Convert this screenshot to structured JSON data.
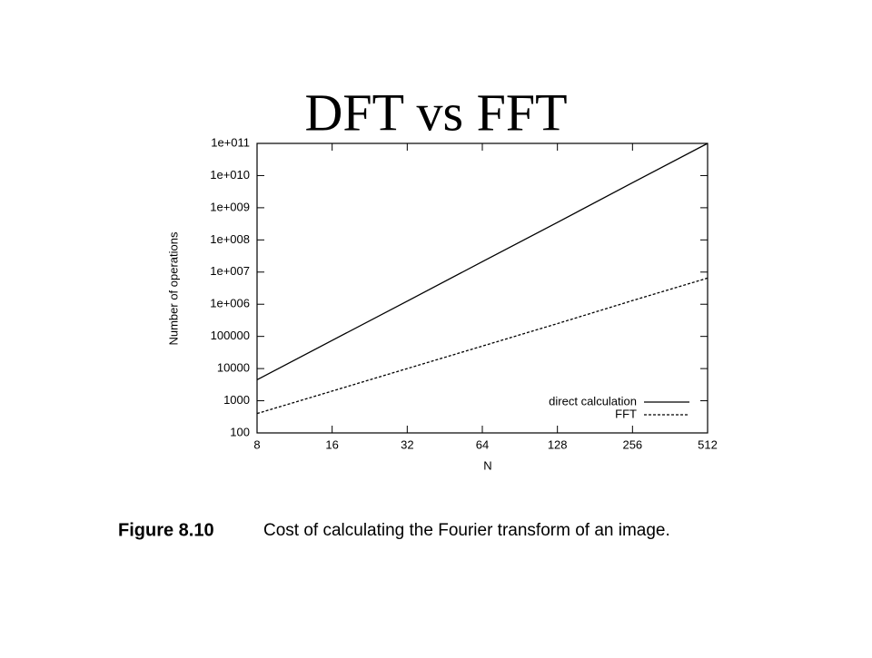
{
  "chart_data": {
    "type": "line",
    "title": "DFT vs FFT",
    "x_label": "N",
    "y_label": "Number of operations",
    "figure_label": "Figure 8.10",
    "caption": "Cost of calculating the Fourier transform of an image.",
    "x": [
      8,
      16,
      32,
      64,
      128,
      256,
      512
    ],
    "series": [
      {
        "name": "direct calculation",
        "color": "#000000",
        "dash": "solid",
        "values": [
          4500,
          75000,
          1250000,
          21000000,
          350000000,
          6000000000,
          100000000000
        ]
      },
      {
        "name": "FFT",
        "color": "#000000",
        "dash": "dotted",
        "values": [
          400,
          2000,
          10000,
          50000,
          250000,
          1300000,
          6500000
        ]
      }
    ],
    "xscale": "log",
    "yscale": "log",
    "xlim": [
      8,
      512
    ],
    "ylim": [
      100,
      100000000000
    ],
    "xticks": [
      8,
      16,
      32,
      64,
      128,
      256,
      512
    ],
    "yticks": [
      100,
      1000,
      10000,
      100000,
      {
        "value": 1000000,
        "label": "1e+006"
      },
      {
        "value": 10000000,
        "label": "1e+007"
      },
      {
        "value": 100000000,
        "label": "1e+008"
      },
      {
        "value": 1000000000,
        "label": "1e+009"
      },
      {
        "value": 10000000000,
        "label": "1e+010"
      },
      {
        "value": 100000000000,
        "label": "1e+011"
      }
    ],
    "grid": false,
    "legend": "lower-right"
  }
}
